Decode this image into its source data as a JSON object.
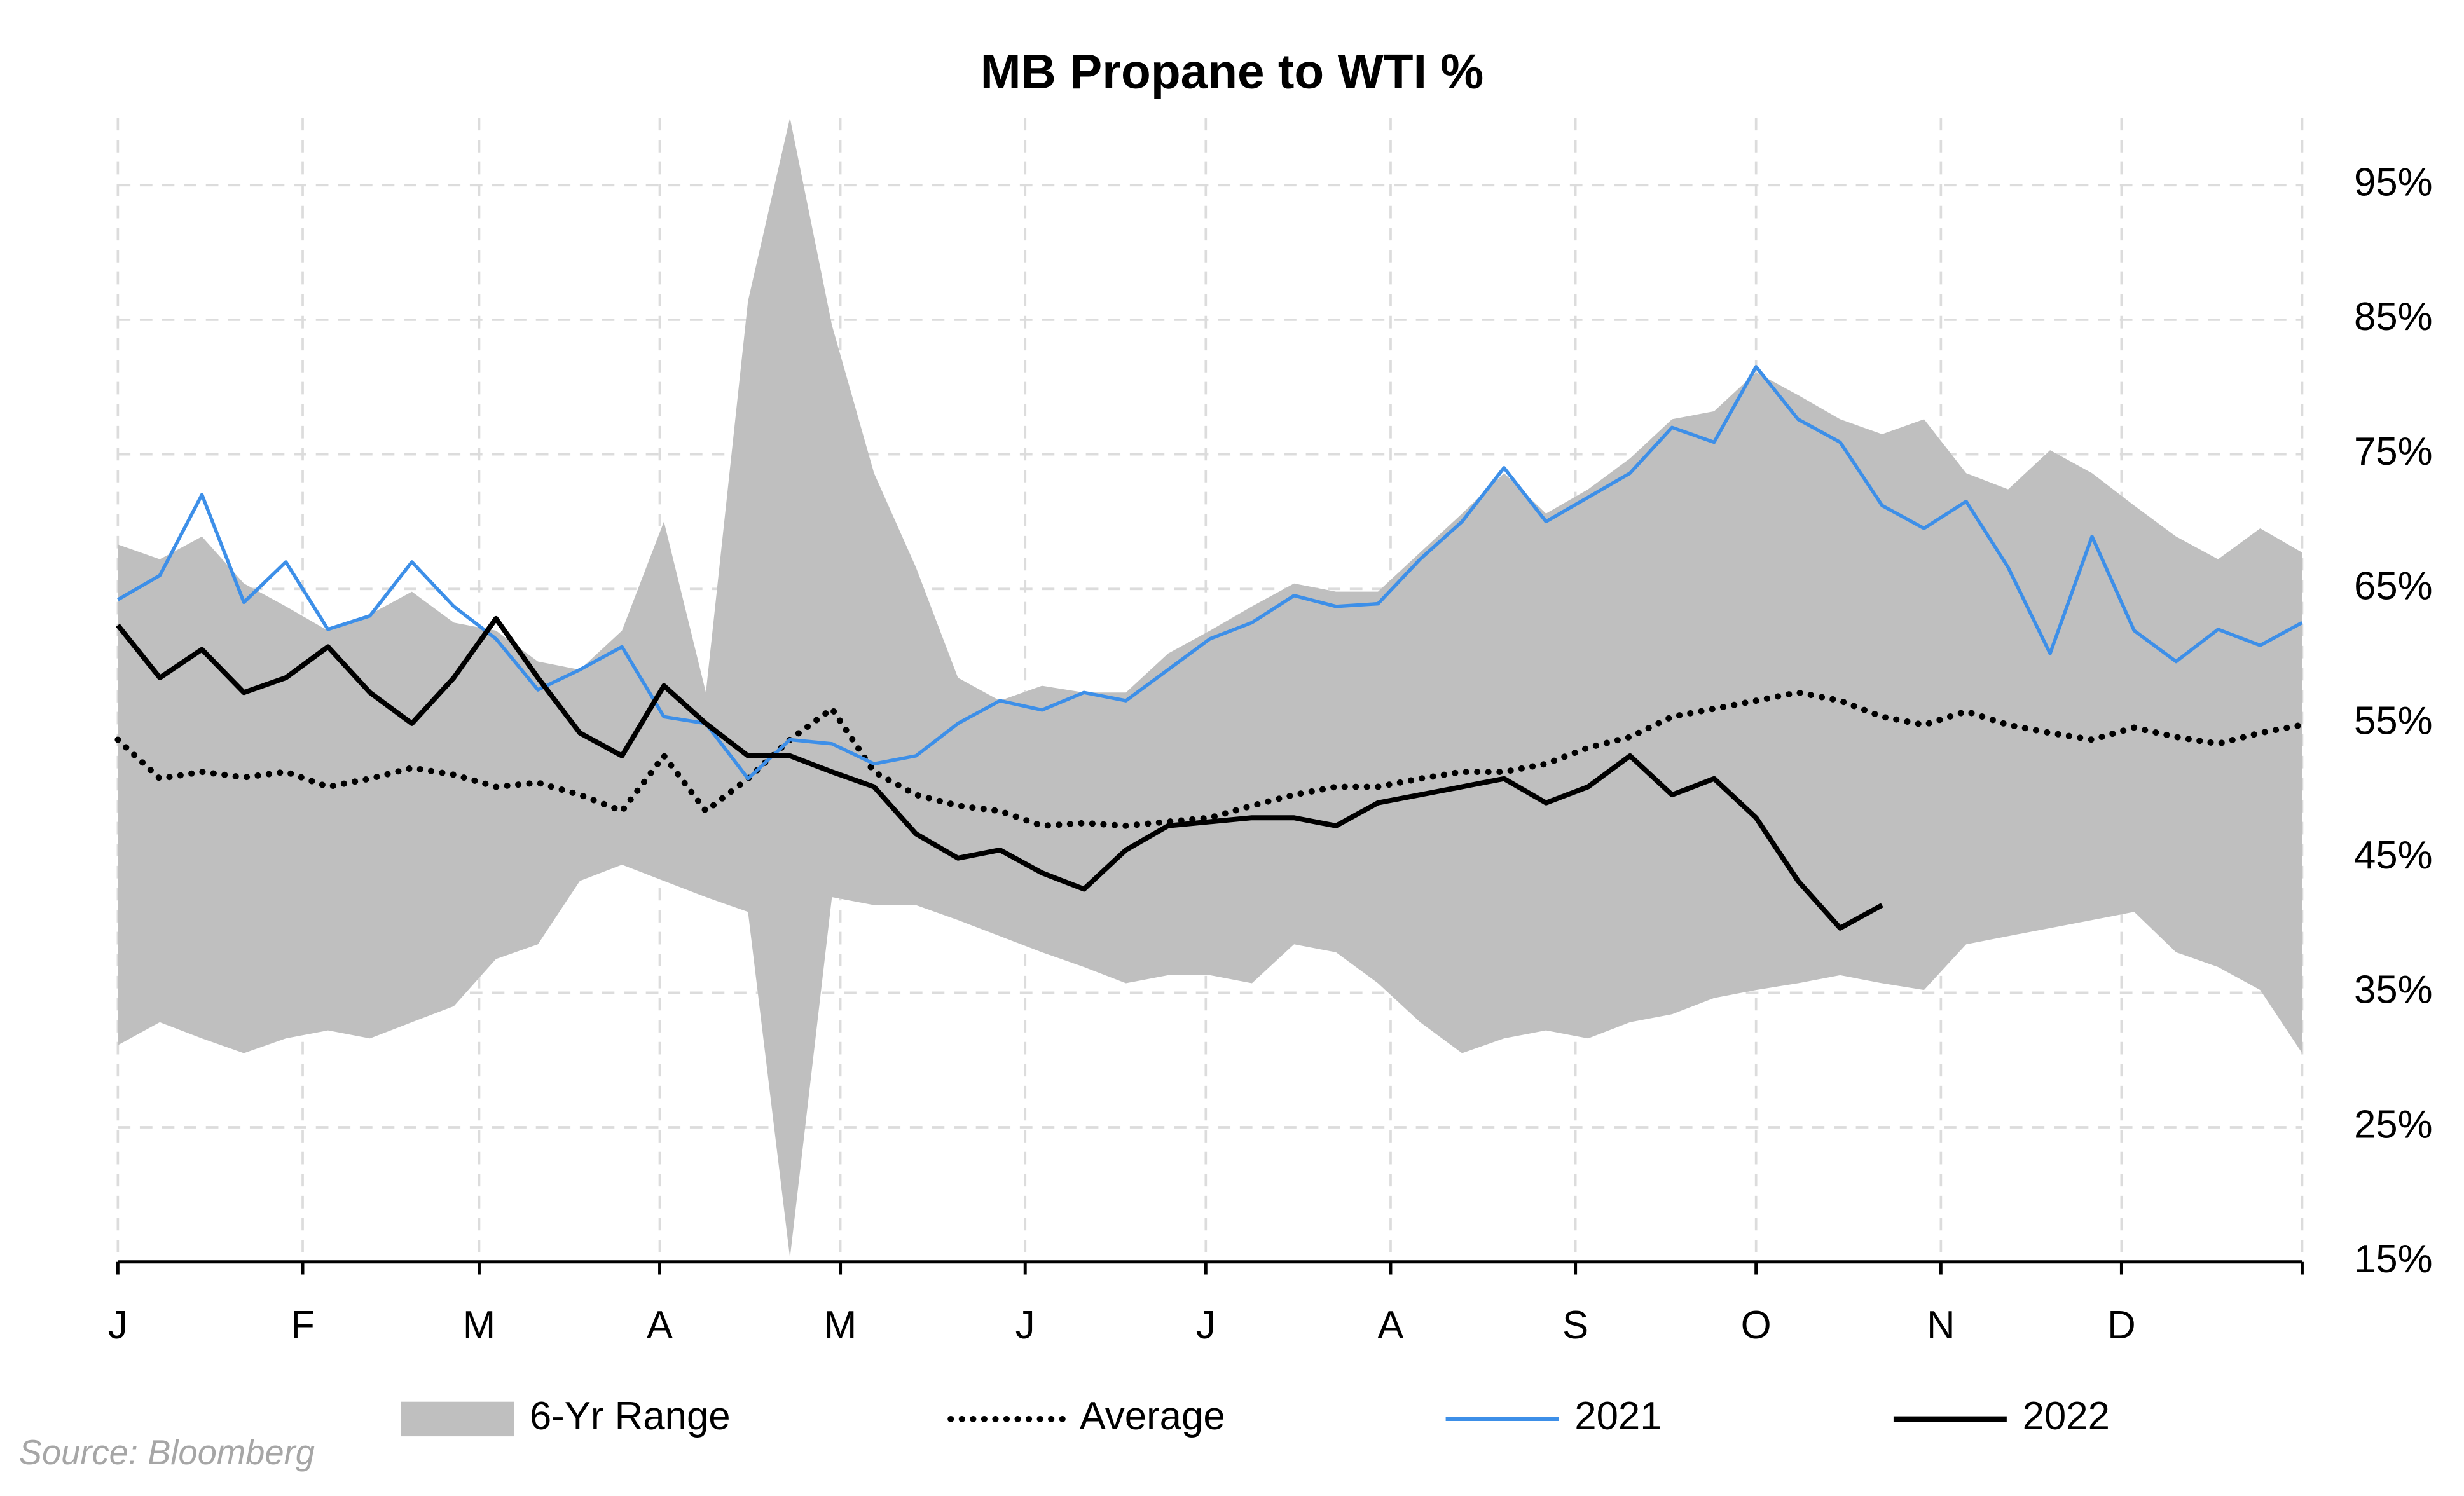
{
  "chart_data": {
    "type": "line",
    "title": "MB Propane to WTI %",
    "source": "Source: Bloomberg",
    "x": [
      0,
      1,
      2,
      3,
      4,
      5,
      6,
      7,
      8,
      9,
      10,
      11,
      12,
      13,
      14,
      15,
      16,
      17,
      18,
      19,
      20,
      21,
      22,
      23,
      24,
      25,
      26,
      27,
      28,
      29,
      30,
      31,
      32,
      33,
      34,
      35,
      36,
      37,
      38,
      39,
      40,
      41,
      42,
      43,
      44,
      45,
      46,
      47,
      48,
      49,
      50,
      51,
      52
    ],
    "xlim": [
      0,
      52
    ],
    "xticks": [
      {
        "value": 0,
        "label": "J"
      },
      {
        "value": 4.4,
        "label": "F"
      },
      {
        "value": 8.6,
        "label": "M"
      },
      {
        "value": 12.9,
        "label": "A"
      },
      {
        "value": 17.2,
        "label": "M"
      },
      {
        "value": 21.6,
        "label": "J"
      },
      {
        "value": 25.9,
        "label": "J"
      },
      {
        "value": 30.3,
        "label": "A"
      },
      {
        "value": 34.7,
        "label": "S"
      },
      {
        "value": 39,
        "label": "O"
      },
      {
        "value": 43.4,
        "label": "N"
      },
      {
        "value": 47.7,
        "label": "D"
      }
    ],
    "ylim": [
      15,
      100
    ],
    "yticks": [
      {
        "value": 15,
        "label": "15%"
      },
      {
        "value": 25,
        "label": "25%"
      },
      {
        "value": 35,
        "label": "35%"
      },
      {
        "value": 45,
        "label": "45%"
      },
      {
        "value": 55,
        "label": "55%"
      },
      {
        "value": 65,
        "label": "65%"
      },
      {
        "value": 75,
        "label": "75%"
      },
      {
        "value": 85,
        "label": "85%"
      },
      {
        "value": 95,
        "label": "95%"
      }
    ],
    "grid": true,
    "legend": "bottom",
    "series": [
      {
        "name": "6-Yr Range",
        "kind": "band",
        "color": "#bfbfbf",
        "high": [
          68.3,
          67.2,
          68.9,
          65.4,
          63.7,
          61.9,
          63.1,
          64.8,
          62.5,
          61.9,
          59.6,
          59,
          61.9,
          70,
          57.3,
          86.4,
          100,
          84.6,
          73.6,
          66.6,
          58.4,
          56.7,
          57.8,
          57.3,
          57.3,
          60.2,
          61.9,
          63.7,
          65.4,
          64.8,
          64.8,
          67.7,
          70.6,
          73.6,
          70.6,
          72.4,
          74.7,
          77.6,
          78.2,
          81.1,
          79.4,
          77.6,
          76.5,
          77.6,
          73.6,
          72.4,
          75.3,
          73.6,
          71.2,
          68.9,
          67.2,
          69.5,
          67.7
        ],
        "low": [
          31.1,
          32.8,
          31.6,
          30.5,
          31.6,
          32.2,
          31.6,
          32.8,
          34,
          37.5,
          38.6,
          43.3,
          44.5,
          43.3,
          42.1,
          41,
          15.3,
          42.1,
          41.5,
          41.5,
          40.4,
          39.2,
          38,
          36.9,
          35.7,
          36.3,
          36.3,
          35.7,
          38.6,
          38,
          35.7,
          32.8,
          30.5,
          31.6,
          32.2,
          31.6,
          32.8,
          33.4,
          34.6,
          35.2,
          35.7,
          36.3,
          35.7,
          35.2,
          38.6,
          39.2,
          39.8,
          40.4,
          41,
          38,
          36.9,
          35.2,
          30.5
        ]
      },
      {
        "name": "Average",
        "kind": "dotted",
        "color": "#000000",
        "values": [
          53.8,
          50.9,
          51.4,
          51,
          51.4,
          50.3,
          50.9,
          51.7,
          51.2,
          50.3,
          50.6,
          49.7,
          48.5,
          52.6,
          48.5,
          50.9,
          53.8,
          56.1,
          51.4,
          49.7,
          48.9,
          48.5,
          47.4,
          47.6,
          47.4,
          47.7,
          48,
          48.9,
          49.7,
          50.3,
          50.3,
          50.9,
          51.4,
          51.4,
          52,
          53.2,
          54,
          55.5,
          56.1,
          56.7,
          57.3,
          56.7,
          55.5,
          54.9,
          55.9,
          54.9,
          54.3,
          53.8,
          54.7,
          54,
          53.5,
          54.3,
          54.9
        ]
      },
      {
        "name": "2021",
        "kind": "line",
        "color": "#3d8fe8",
        "values": [
          64.2,
          66,
          72,
          64,
          67,
          62,
          63,
          67,
          63.7,
          61.3,
          57.5,
          59,
          60.7,
          55.5,
          55,
          50.9,
          53.8,
          53.5,
          52,
          52.6,
          55,
          56.7,
          56,
          57.3,
          56.7,
          59,
          61.3,
          62.5,
          64.5,
          63.7,
          63.9,
          67.2,
          70,
          74,
          70,
          71.8,
          73.6,
          77,
          75.9,
          81.5,
          77.6,
          75.9,
          71.2,
          69.5,
          71.5,
          66.6,
          60.2,
          68.9,
          61.9,
          59.6,
          62,
          60.8,
          62.5
        ]
      },
      {
        "name": "2022",
        "kind": "line",
        "color": "#000000",
        "values": [
          62.3,
          58.4,
          60.5,
          57.3,
          58.4,
          60.7,
          57.3,
          55,
          58.4,
          62.8,
          58.4,
          54.3,
          52.6,
          57.8,
          55,
          52.6,
          52.6,
          51.4,
          50.3,
          46.8,
          45,
          45.6,
          43.9,
          42.7,
          45.6,
          47.4,
          47.7,
          48,
          48,
          47.4,
          49.1,
          49.7,
          50.3,
          50.9,
          49.1,
          50.3,
          52.6,
          49.7,
          50.9,
          48,
          43.3,
          39.8,
          41.5,
          null,
          null,
          null,
          null,
          null,
          null,
          null,
          null,
          null,
          null
        ]
      }
    ]
  }
}
